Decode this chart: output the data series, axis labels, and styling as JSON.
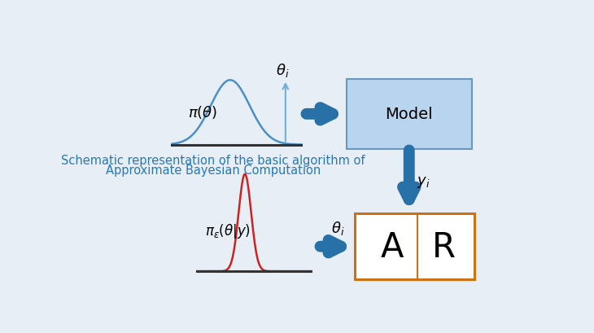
{
  "bg_color": "#e8eef5",
  "title_text_line1": "Schematic representation of the basic algorithm of",
  "title_text_line2": "Approximate Bayesian Computation",
  "title_color": "#2878b8",
  "title_fontsize": 10.5,
  "model_box_facecolor": "#b8d4ee",
  "model_box_edgecolor": "#6898c0",
  "ar_box_edgecolor": "#d07010",
  "ar_box_facecolor": "white",
  "model_text": "Model",
  "model_text_color": "black",
  "model_text_fontsize": 14,
  "ar_a_text": "A",
  "ar_r_text": "R",
  "ar_text_fontsize": 30,
  "arrow_color": "#2870a8",
  "prior_curve_color": "#4a90c8",
  "posterior_curve_color": "#cc2222",
  "prior_label": "$\\pi(\\theta)$",
  "posterior_label": "$\\pi_\\epsilon(\\theta|y)$",
  "theta_i_label": "$\\theta_i$",
  "y_i_label": "$y_i$",
  "inner_line_color": "#d07010"
}
